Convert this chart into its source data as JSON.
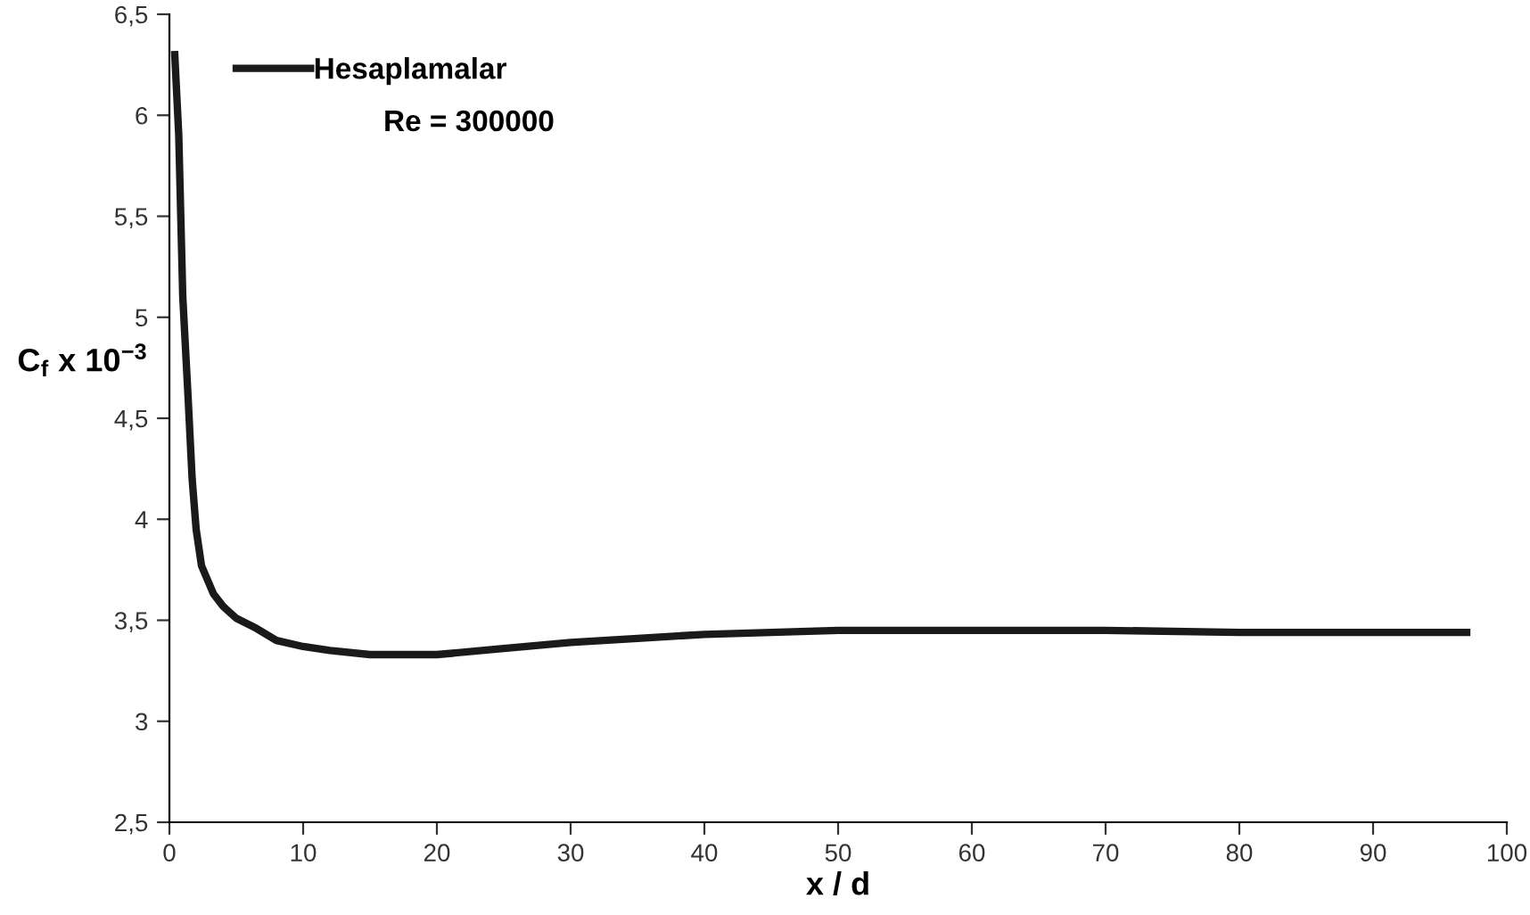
{
  "chart_data": {
    "type": "line",
    "xlabel": "x / d",
    "ylabel": "C$_{f}$ x 10$^{−3}$",
    "annotations": [
      "Re = 300000"
    ],
    "legend": "top left",
    "grid": false,
    "marker": "none",
    "line_style": "solid",
    "xlim": [
      0,
      100
    ],
    "xticks": [
      0,
      10,
      20,
      30,
      40,
      50,
      60,
      70,
      80,
      90,
      100
    ],
    "ylim": [
      2.5,
      6.5
    ],
    "yticks": [
      {
        "value": 2.5,
        "label": "2,5"
      },
      3,
      {
        "value": 3.5,
        "label": "3,5"
      },
      4,
      {
        "value": 4.5,
        "label": "4,5"
      },
      5,
      {
        "value": 5.5,
        "label": "5,5"
      },
      6,
      {
        "value": 6.5,
        "label": "6,5"
      }
    ],
    "series": [
      {
        "name": "Hesaplamalar",
        "color": "#1a1a1a",
        "x": [
          0.4,
          0.7,
          1.0,
          1.4,
          1.7,
          2.0,
          2.4,
          3.3,
          4.0,
          5.0,
          6.5,
          8,
          10,
          12,
          15,
          18,
          20,
          25,
          30,
          35,
          40,
          45,
          50,
          55,
          60,
          70,
          80,
          90,
          97
        ],
        "values": [
          6.3,
          5.9,
          5.1,
          4.6,
          4.2,
          3.95,
          3.77,
          3.63,
          3.57,
          3.51,
          3.46,
          3.4,
          3.37,
          3.35,
          3.33,
          3.33,
          3.33,
          3.36,
          3.39,
          3.41,
          3.43,
          3.44,
          3.45,
          3.45,
          3.45,
          3.45,
          3.44,
          3.44,
          3.44
        ]
      }
    ]
  }
}
